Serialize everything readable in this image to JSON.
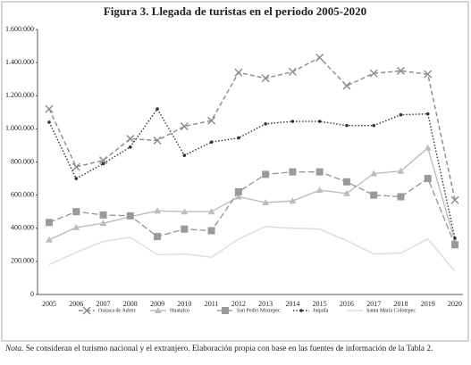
{
  "chart_data": {
    "type": "line",
    "title": "Figura 3. Llegada de turistas en el periodo 2005-2020",
    "categories": [
      "2005",
      "2006",
      "2007",
      "2008",
      "2009",
      "2010",
      "2011",
      "2012",
      "2013",
      "2014",
      "2015",
      "2016",
      "2017",
      "2018",
      "2019",
      "2020"
    ],
    "ylim": [
      0,
      1600000
    ],
    "yticks": [
      0,
      {
        "value": 200000,
        "label": "200.000"
      },
      {
        "value": 400000,
        "label": "400.000"
      },
      {
        "value": 600000,
        "label": "600.000"
      },
      {
        "value": 800000,
        "label": "800.000"
      },
      {
        "value": 1000000,
        "label": "1.000.000"
      },
      {
        "value": 1200000,
        "label": "1.200.000"
      },
      {
        "value": 1400000,
        "label": "1.400.000"
      },
      {
        "value": 1600000,
        "label": "1.600.000"
      }
    ],
    "grid": false,
    "series": [
      {
        "name": "Oaxaca de Juárez",
        "color": "#8a8a8a",
        "dash": "5 3",
        "marker": "x",
        "values": [
          1120000,
          770000,
          810000,
          940000,
          930000,
          1015000,
          1050000,
          1340000,
          1305000,
          1345000,
          1430000,
          1260000,
          1335000,
          1350000,
          1330000,
          570000
        ]
      },
      {
        "name": "Huatulco",
        "color": "#bdbdbd",
        "dash": "",
        "marker": "triangle",
        "values": [
          330000,
          405000,
          430000,
          470000,
          505000,
          500000,
          500000,
          590000,
          555000,
          565000,
          630000,
          610000,
          730000,
          745000,
          885000,
          320000
        ]
      },
      {
        "name": "San Pedro Mixtepec",
        "color": "#9a9a9a",
        "dash": "7 3",
        "marker": "square",
        "values": [
          435000,
          500000,
          480000,
          475000,
          350000,
          395000,
          385000,
          620000,
          725000,
          740000,
          740000,
          680000,
          600000,
          590000,
          700000,
          300000
        ]
      },
      {
        "name": "Juquila",
        "color": "#333333",
        "dash": "1.5 2",
        "marker": "dot",
        "values": [
          1040000,
          700000,
          790000,
          890000,
          1120000,
          840000,
          920000,
          945000,
          1030000,
          1045000,
          1045000,
          1020000,
          1020000,
          1085000,
          1090000,
          340000
        ]
      },
      {
        "name": "Santa María Colotepec",
        "color": "#dcdcdc",
        "dash": "",
        "marker": "none",
        "values": [
          180000,
          255000,
          320000,
          345000,
          240000,
          245000,
          225000,
          335000,
          410000,
          400000,
          395000,
          325000,
          245000,
          250000,
          335000,
          140000
        ]
      }
    ],
    "note_label": "Nota.",
    "note": "Se consideran el turismo nacional y el extranjero. Elaboración propia con base en las fuentes de información de la Tabla 2."
  }
}
